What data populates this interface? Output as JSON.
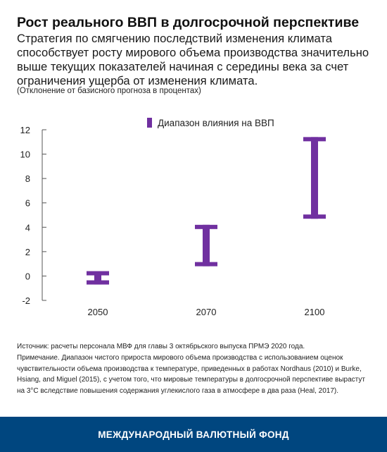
{
  "header": {
    "title": "Рост реального ВВП в долгосрочной перспективе",
    "subtitle": "Стратегия по смягчению последствий изменения климата способствует росту мирового объема производства значительно выше текущих показателей начиная с середины века за счет ограничения ущерба от изменения климата.",
    "unit_note": "(Отклонение от базисного прогноза в процентах)"
  },
  "chart_data": {
    "type": "range",
    "categories": [
      "2050",
      "2070",
      "2100"
    ],
    "series": [
      {
        "name": "Диапазон влияния на ВВП",
        "ranges": [
          [
            -0.7,
            0.4
          ],
          [
            0.8,
            4.2
          ],
          [
            4.7,
            11.4
          ]
        ],
        "color": "#7030a0"
      }
    ],
    "yticks": [
      12,
      10,
      8,
      6,
      4,
      2,
      0,
      -2
    ],
    "ylim": [
      -2,
      12
    ],
    "legend_position": "top",
    "grid": false
  },
  "notes": {
    "source": "Источник: расчеты персонала МВФ для главы 3 октябрьского выпуска ПРМЭ 2020 года.",
    "note": "Примечание. Диапазон чистого прироста мирового объема производства с использованием оценок чувствительности объема производства к температуре, приведенных в работах Nordhaus (2010) и Burke, Hsiang, and Miguel (2015), с учетом того, что мировые температуры в долгосрочной перспективе вырастут на 3°C вследствие повышения содержания углекислого газа в атмосфере в два раза (Heal, 2017)."
  },
  "footer": {
    "label": "МЕЖДУНАРОДНЫЙ ВАЛЮТНЫЙ ФОНД"
  }
}
